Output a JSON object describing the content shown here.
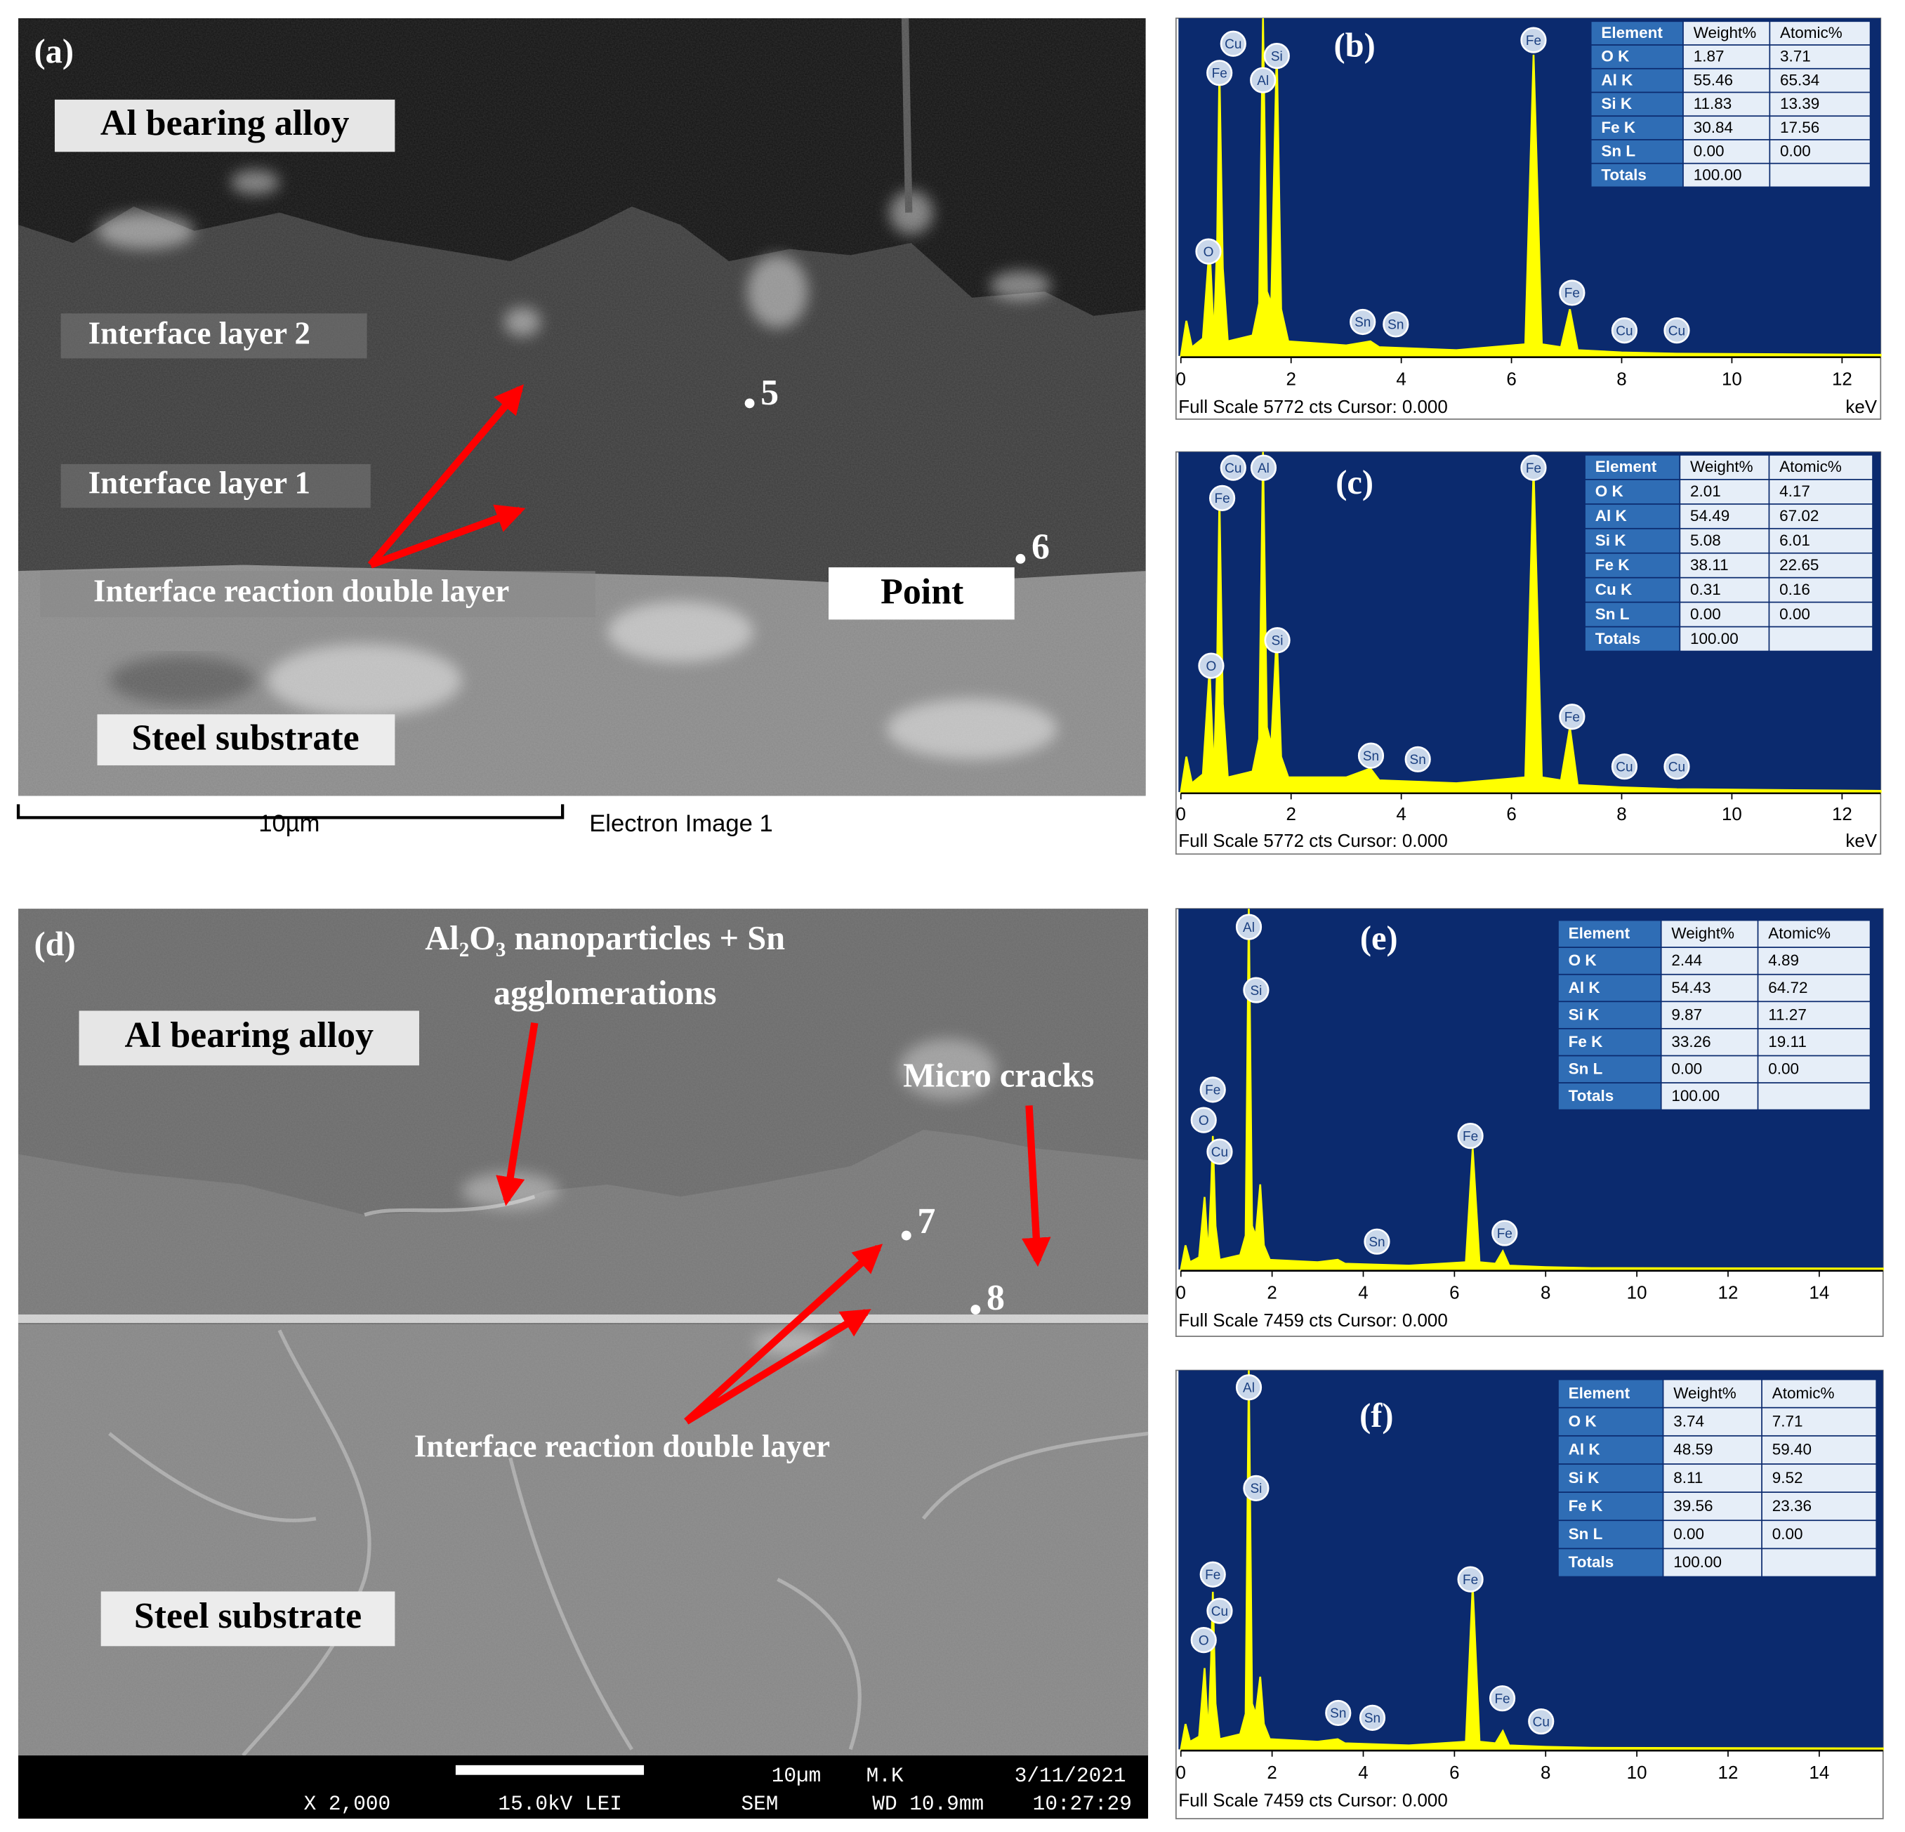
{
  "images": [
    {
      "label": "(a)",
      "material_top": "Al bearing  alloy",
      "layer_2": "Interface layer 2",
      "layer_1": "Interface layer 1",
      "double_layer": "Interface reaction double layer",
      "point": "Point",
      "points": [
        "5",
        "6"
      ],
      "substrate": "Steel substrate",
      "scale_bar": "10µm",
      "caption": "Electron Image 1"
    },
    {
      "label": "(d)",
      "nanoparticles": [
        "Al₂O₃ nanoparticles  + Sn",
        "agglomerations"
      ],
      "material_top": "Al bearing  alloy",
      "cracks": "Micro  cracks",
      "points": [
        "7",
        "8"
      ],
      "double_layer": "Interface reaction double layer",
      "substrate": "Steel substrate",
      "info": {
        "scale_bar": "10µm",
        "operator": "M.K",
        "date": "3/11/2021",
        "magnification": "X 2,000",
        "voltage": "15.0kV LEI",
        "instrument": "SEM",
        "working_distance": "WD 10.9mm",
        "time": "10:27:29"
      }
    }
  ],
  "chart_data": [
    {
      "type": "line",
      "label": "(b)",
      "color": "#ffff00",
      "x": [
        0,
        0.1,
        0.2,
        0.4,
        0.52,
        0.6,
        0.66,
        0.7,
        0.76,
        0.85,
        1.3,
        1.42,
        1.49,
        1.56,
        1.64,
        1.74,
        1.82,
        1.95,
        3.0,
        3.44,
        3.6,
        5.0,
        6.25,
        6.4,
        6.55,
        6.9,
        7.06,
        7.2,
        8.0,
        9.0,
        12.7
      ],
      "values": [
        0,
        600,
        150,
        300,
        1900,
        300,
        2000,
        4900,
        1500,
        250,
        350,
        900,
        5772,
        1100,
        900,
        5250,
        800,
        250,
        180,
        250,
        150,
        100,
        200,
        5150,
        200,
        150,
        800,
        100,
        60,
        40,
        20
      ],
      "xlim": [
        0,
        12.7
      ],
      "xticks": [
        0,
        2,
        4,
        6,
        8,
        10,
        12
      ],
      "ylim": [
        0,
        5772
      ],
      "x_label": "keV",
      "footer": "Full Scale 5772 cts Cursor: 0.000",
      "peak_labels": [
        "Cu",
        "Fe",
        "Al",
        "Si",
        "O",
        "Sn",
        "Sn",
        "Fe",
        "Fe",
        "Cu",
        "Cu"
      ],
      "table": {
        "header": [
          "Element",
          "Weight%",
          "Atomic%"
        ],
        "rows": [
          [
            "O K",
            "1.87",
            "3.71"
          ],
          [
            "Al K",
            "55.46",
            "65.34"
          ],
          [
            "Si K",
            "11.83",
            "13.39"
          ],
          [
            "Fe K",
            "30.84",
            "17.56"
          ],
          [
            "Sn L",
            "0.00",
            "0.00"
          ],
          [
            "Totals",
            "100.00"
          ]
        ]
      }
    },
    {
      "type": "line",
      "label": "(c)",
      "color": "#ffff00",
      "x": [
        0,
        0.1,
        0.2,
        0.4,
        0.52,
        0.6,
        0.66,
        0.7,
        0.76,
        0.85,
        1.3,
        1.42,
        1.49,
        1.56,
        1.64,
        1.74,
        1.82,
        1.95,
        3.0,
        3.44,
        3.6,
        5.0,
        6.25,
        6.4,
        6.55,
        6.9,
        7.06,
        7.2,
        8.0,
        9.0,
        12.7
      ],
      "values": [
        0,
        600,
        150,
        300,
        2100,
        300,
        2200,
        5000,
        1500,
        250,
        350,
        900,
        5772,
        1100,
        800,
        2700,
        600,
        250,
        250,
        400,
        200,
        150,
        250,
        5500,
        250,
        200,
        1100,
        120,
        80,
        50,
        20
      ],
      "xlim": [
        0,
        12.7
      ],
      "xticks": [
        0,
        2,
        4,
        6,
        8,
        10,
        12
      ],
      "ylim": [
        0,
        5772
      ],
      "x_label": "keV",
      "footer": "Full Scale 5772 cts Cursor: 0.000",
      "peak_labels": [
        "Cu",
        "Al",
        "Fe",
        "Si",
        "O",
        "Sn",
        "Sn",
        "Fe",
        "Fe",
        "Cu",
        "Cu"
      ],
      "table": {
        "header": [
          "Element",
          "Weight%",
          "Atomic%"
        ],
        "rows": [
          [
            "O K",
            "2.01",
            "4.17"
          ],
          [
            "Al K",
            "54.49",
            "67.02"
          ],
          [
            "Si K",
            "5.08",
            "6.01"
          ],
          [
            "Fe K",
            "38.11",
            "22.65"
          ],
          [
            "Cu K",
            "0.31",
            "0.16"
          ],
          [
            "Sn L",
            "0.00",
            "0.00"
          ],
          [
            "Totals",
            "100.00"
          ]
        ]
      }
    },
    {
      "type": "line",
      "label": "(e)",
      "color": "#ffff00",
      "x": [
        0,
        0.1,
        0.2,
        0.4,
        0.52,
        0.6,
        0.66,
        0.7,
        0.76,
        0.85,
        1.3,
        1.42,
        1.49,
        1.56,
        1.64,
        1.74,
        1.82,
        1.95,
        3.0,
        3.44,
        3.6,
        5.0,
        6.25,
        6.4,
        6.55,
        6.9,
        7.06,
        7.2,
        8.0,
        9.0,
        15.4
      ],
      "values": [
        0,
        500,
        150,
        250,
        1500,
        300,
        1600,
        2760,
        900,
        200,
        300,
        700,
        7459,
        900,
        700,
        1760,
        500,
        200,
        150,
        200,
        120,
        80,
        150,
        2510,
        150,
        120,
        380,
        80,
        50,
        30,
        20
      ],
      "xlim": [
        0,
        15.4
      ],
      "xticks": [
        0,
        2,
        4,
        6,
        8,
        10,
        12,
        14
      ],
      "ylim": [
        0,
        7459
      ],
      "footer": "Full Scale 7459 cts Cursor: 0.000",
      "peak_labels": [
        "Al",
        "Si",
        "Fe",
        "O",
        "Cu",
        "Sn",
        "Fe",
        "Fe"
      ],
      "table": {
        "header": [
          "Element",
          "Weight%",
          "Atomic%"
        ],
        "rows": [
          [
            "O K",
            "2.44",
            "4.89"
          ],
          [
            "Al K",
            "54.43",
            "64.72"
          ],
          [
            "Si K",
            "9.87",
            "11.27"
          ],
          [
            "Fe K",
            "33.26",
            "19.11"
          ],
          [
            "Sn L",
            "0.00",
            "0.00"
          ],
          [
            "Totals",
            "100.00"
          ]
        ]
      }
    },
    {
      "type": "line",
      "label": "(f)",
      "color": "#ffff00",
      "x": [
        0,
        0.1,
        0.2,
        0.4,
        0.52,
        0.6,
        0.66,
        0.7,
        0.76,
        0.85,
        1.3,
        1.42,
        1.49,
        1.56,
        1.64,
        1.74,
        1.82,
        1.95,
        3.0,
        3.44,
        3.6,
        5.0,
        6.25,
        6.4,
        6.55,
        6.9,
        7.06,
        7.2,
        8.0,
        9.0,
        15.4
      ],
      "values": [
        0,
        500,
        150,
        250,
        1600,
        300,
        1700,
        3100,
        900,
        200,
        300,
        700,
        7459,
        900,
        700,
        1430,
        500,
        200,
        150,
        200,
        120,
        80,
        150,
        3230,
        150,
        120,
        360,
        80,
        50,
        30,
        20
      ],
      "xlim": [
        0,
        15.4
      ],
      "xticks": [
        0,
        2,
        4,
        6,
        8,
        10,
        12,
        14
      ],
      "ylim": [
        0,
        7459
      ],
      "footer": "Full Scale 7459 cts Cursor: 0.000",
      "peak_labels": [
        "Al",
        "Si",
        "Fe",
        "Cu",
        "O",
        "Sn",
        "Sn",
        "Fe",
        "Fe",
        "Cu"
      ],
      "table": {
        "header": [
          "Element",
          "Weight%",
          "Atomic%"
        ],
        "rows": [
          [
            "O K",
            "3.74",
            "7.71"
          ],
          [
            "Al K",
            "48.59",
            "59.40"
          ],
          [
            "Si K",
            "8.11",
            "9.52"
          ],
          [
            "Fe K",
            "39.56",
            "23.36"
          ],
          [
            "Sn L",
            "0.00",
            "0.00"
          ],
          [
            "Totals",
            "100.00"
          ]
        ]
      }
    }
  ]
}
